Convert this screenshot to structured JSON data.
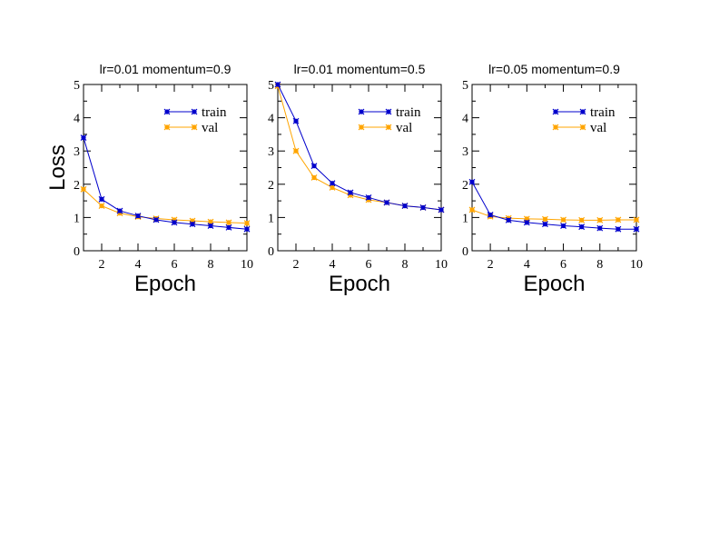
{
  "colors": {
    "train": "#0000cc",
    "val": "#ffa500",
    "axis": "#000000",
    "background": "#ffffff"
  },
  "chart_data": [
    {
      "type": "line",
      "title": "lr=0.01  momentum=0.9",
      "xlabel": "Epoch",
      "ylabel": "Loss",
      "xlim": [
        1,
        10
      ],
      "ylim": [
        0,
        5
      ],
      "xticks": [
        2,
        4,
        6,
        8,
        10
      ],
      "yticks": [
        0,
        1,
        2,
        3,
        4,
        5
      ],
      "grid": false,
      "legend": "top-right",
      "x": [
        1,
        2,
        3,
        4,
        5,
        6,
        7,
        8,
        9,
        10
      ],
      "series": [
        {
          "name": "train",
          "values": [
            3.4,
            1.55,
            1.2,
            1.05,
            0.93,
            0.85,
            0.8,
            0.75,
            0.7,
            0.65
          ]
        },
        {
          "name": "val",
          "values": [
            1.85,
            1.35,
            1.13,
            1.02,
            0.97,
            0.93,
            0.9,
            0.87,
            0.85,
            0.83
          ]
        }
      ]
    },
    {
      "type": "line",
      "title": "lr=0.01  momentum=0.5",
      "xlabel": "Epoch",
      "ylabel": "",
      "xlim": [
        1,
        10
      ],
      "ylim": [
        0,
        5
      ],
      "xticks": [
        2,
        4,
        6,
        8,
        10
      ],
      "yticks": [
        0,
        1,
        2,
        3,
        4,
        5
      ],
      "grid": false,
      "legend": "top-right",
      "x": [
        1,
        2,
        3,
        4,
        5,
        6,
        7,
        8,
        9,
        10
      ],
      "series": [
        {
          "name": "train",
          "values": [
            5.0,
            3.9,
            2.55,
            2.03,
            1.75,
            1.6,
            1.45,
            1.35,
            1.3,
            1.23
          ]
        },
        {
          "name": "val",
          "values": [
            4.95,
            3.0,
            2.2,
            1.9,
            1.67,
            1.53,
            1.45,
            1.35,
            1.3,
            1.23
          ]
        }
      ]
    },
    {
      "type": "line",
      "title": "lr=0.05  momentum=0.9",
      "xlabel": "Epoch",
      "ylabel": "",
      "xlim": [
        1,
        10
      ],
      "ylim": [
        0,
        5
      ],
      "xticks": [
        2,
        4,
        6,
        8,
        10
      ],
      "yticks": [
        0,
        1,
        2,
        3,
        4,
        5
      ],
      "grid": false,
      "legend": "top-right",
      "x": [
        1,
        2,
        3,
        4,
        5,
        6,
        7,
        8,
        9,
        10
      ],
      "series": [
        {
          "name": "train",
          "values": [
            2.07,
            1.08,
            0.92,
            0.85,
            0.8,
            0.75,
            0.72,
            0.68,
            0.65,
            0.65
          ]
        },
        {
          "name": "val",
          "values": [
            1.23,
            1.03,
            0.98,
            0.96,
            0.95,
            0.93,
            0.92,
            0.92,
            0.93,
            0.93
          ]
        }
      ]
    }
  ]
}
